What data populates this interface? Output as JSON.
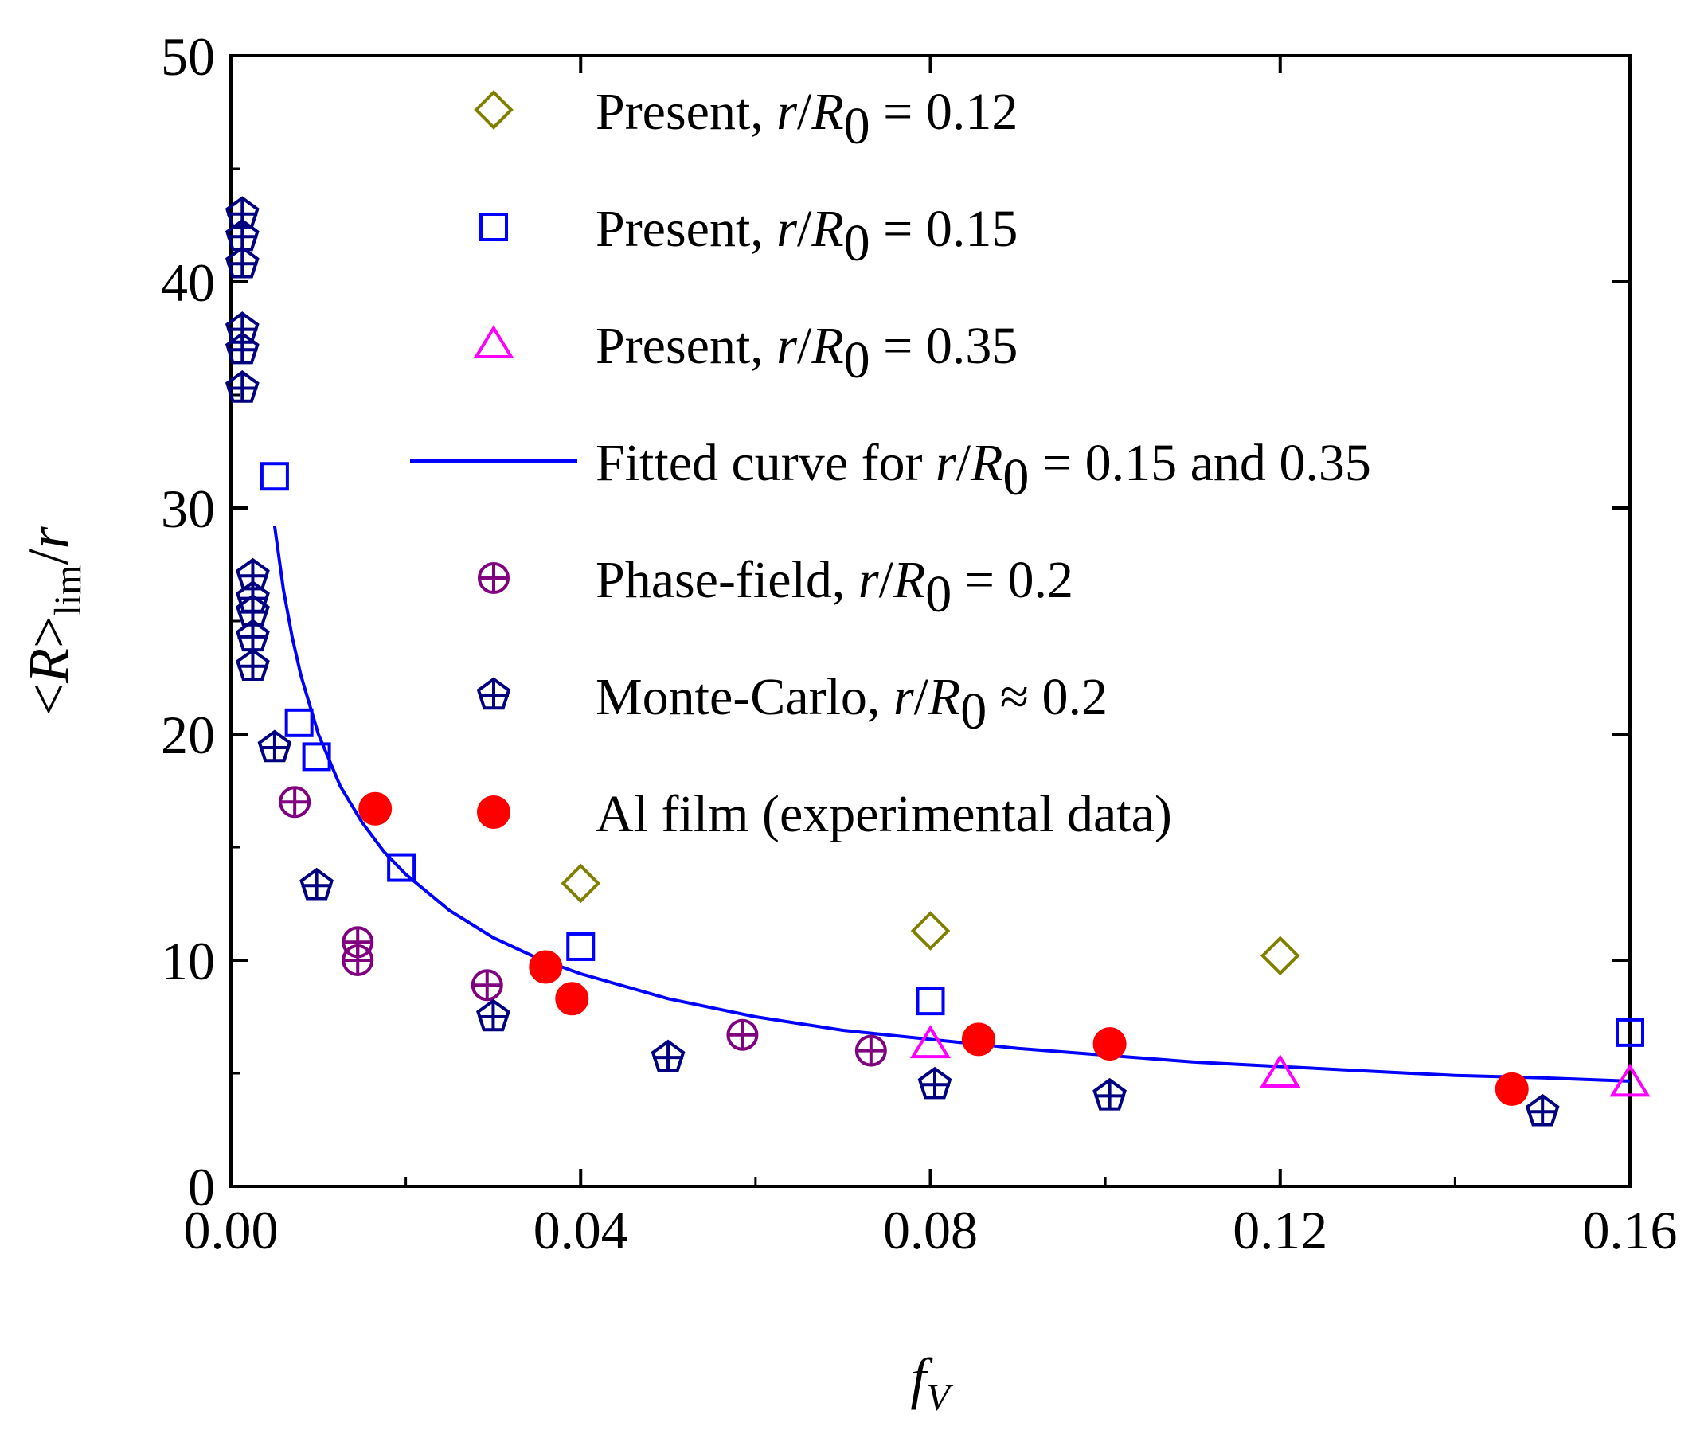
{
  "chart_data": {
    "type": "scatter",
    "xlabel": {
      "base": "f",
      "sub": "V"
    },
    "ylabel": {
      "pre": "<",
      "R": "R",
      "post": ">",
      "sub": "lim",
      "tail": "/",
      "r": "r"
    },
    "xlim": [
      0,
      0.16
    ],
    "ylim": [
      0,
      50
    ],
    "xticks": [
      0.0,
      0.04,
      0.08,
      0.12,
      0.16
    ],
    "xtick_labels": [
      "0.00",
      "0.04",
      "0.08",
      "0.12",
      "0.16"
    ],
    "yticks": [
      0,
      10,
      20,
      30,
      40,
      50
    ],
    "ytick_labels": [
      "0",
      "10",
      "20",
      "30",
      "40",
      "50"
    ],
    "legend_position": "top-right (inside)",
    "series": [
      {
        "name": "Present, r/R0 = 0.12",
        "legend": {
          "prefix": "Present, ",
          "var": "r",
          "slash": "/",
          "R": "R",
          "sub": "0",
          "rel": " = ",
          "value": "0.12"
        },
        "marker": "diamond",
        "color": "#808000",
        "points": [
          [
            0.04,
            13.4
          ],
          [
            0.08,
            11.3
          ],
          [
            0.12,
            10.2
          ]
        ]
      },
      {
        "name": "Present, r/R0 = 0.15",
        "legend": {
          "prefix": "Present, ",
          "var": "r",
          "slash": "/",
          "R": "R",
          "sub": "0",
          "rel": " = ",
          "value": "0.15"
        },
        "marker": "square",
        "color": "#0000ff",
        "points": [
          [
            0.005,
            31.4
          ],
          [
            0.0078,
            20.5
          ],
          [
            0.0098,
            19.0
          ],
          [
            0.0195,
            14.1
          ],
          [
            0.04,
            10.6
          ],
          [
            0.08,
            8.2
          ],
          [
            0.16,
            6.8
          ]
        ]
      },
      {
        "name": "Present, r/R0 = 0.35",
        "legend": {
          "prefix": "Present, ",
          "var": "r",
          "slash": "/",
          "R": "R",
          "sub": "0",
          "rel": " = ",
          "value": "0.35"
        },
        "marker": "triangle",
        "color": "#ff00ff",
        "points": [
          [
            0.08,
            6.3
          ],
          [
            0.12,
            5.0
          ],
          [
            0.16,
            4.6
          ]
        ]
      },
      {
        "name": "Fitted curve for r/R0 = 0.15 and 0.35",
        "legend": {
          "prefix": "Fitted curve for ",
          "var": "r",
          "slash": "/",
          "R": "R",
          "sub": "0",
          "rel": " = ",
          "value": "0.15 and 0.35"
        },
        "marker": "line",
        "color": "#0000ff",
        "points": [
          [
            0.005,
            29.2
          ],
          [
            0.006,
            26.4
          ],
          [
            0.007,
            24.3
          ],
          [
            0.008,
            22.6
          ],
          [
            0.01,
            20.0
          ],
          [
            0.0125,
            17.7
          ],
          [
            0.015,
            16.1
          ],
          [
            0.0175,
            14.8
          ],
          [
            0.02,
            13.8
          ],
          [
            0.025,
            12.2
          ],
          [
            0.03,
            11.0
          ],
          [
            0.035,
            10.1
          ],
          [
            0.04,
            9.4
          ],
          [
            0.05,
            8.3
          ],
          [
            0.06,
            7.5
          ],
          [
            0.07,
            6.9
          ],
          [
            0.08,
            6.5
          ],
          [
            0.09,
            6.1
          ],
          [
            0.1,
            5.8
          ],
          [
            0.11,
            5.5
          ],
          [
            0.12,
            5.3
          ],
          [
            0.13,
            5.1
          ],
          [
            0.14,
            4.9
          ],
          [
            0.15,
            4.8
          ],
          [
            0.16,
            4.65
          ]
        ]
      },
      {
        "name": "Phase-field, r/R0 = 0.2",
        "legend": {
          "prefix": "Phase-field, ",
          "var": "r",
          "slash": "/",
          "R": "R",
          "sub": "0",
          "rel": " = ",
          "value": "0.2"
        },
        "marker": "circle-plus",
        "color": "#800080",
        "points": [
          [
            0.0073,
            17.0
          ],
          [
            0.0145,
            10.8
          ],
          [
            0.0145,
            10.0
          ],
          [
            0.0293,
            8.9
          ],
          [
            0.0585,
            6.7
          ],
          [
            0.0732,
            6.0
          ]
        ]
      },
      {
        "name": "Monte-Carlo, r/R0 ≈ 0.2",
        "legend": {
          "prefix": "Monte-Carlo, ",
          "var": "r",
          "slash": "/",
          "R": "R",
          "sub": "0",
          "rel": " ≈ ",
          "value": "0.2"
        },
        "marker": "pentagon-plus",
        "color": "#000080",
        "points": [
          [
            0.0013,
            43.0
          ],
          [
            0.0013,
            42.0
          ],
          [
            0.0013,
            40.8
          ],
          [
            0.0013,
            37.9
          ],
          [
            0.0013,
            37.0
          ],
          [
            0.0013,
            35.3
          ],
          [
            0.0025,
            27.0
          ],
          [
            0.0025,
            26.0
          ],
          [
            0.0025,
            25.4
          ],
          [
            0.0025,
            24.3
          ],
          [
            0.0025,
            23.0
          ],
          [
            0.005,
            19.4
          ],
          [
            0.0098,
            13.3
          ],
          [
            0.03,
            7.5
          ],
          [
            0.05,
            5.7
          ],
          [
            0.0805,
            4.5
          ],
          [
            0.1005,
            4.0
          ],
          [
            0.15,
            3.3
          ]
        ]
      },
      {
        "name": "Al film (experimental data)",
        "legend": {
          "prefix": "Al film (experimental data)",
          "var": "",
          "slash": "",
          "R": "",
          "sub": "",
          "rel": "",
          "value": ""
        },
        "marker": "filled-circle",
        "color": "#ff0000",
        "points": [
          [
            0.0165,
            16.7
          ],
          [
            0.036,
            9.7
          ],
          [
            0.039,
            8.3
          ],
          [
            0.0855,
            6.5
          ],
          [
            0.1005,
            6.3
          ],
          [
            0.1465,
            4.3
          ]
        ]
      }
    ]
  }
}
